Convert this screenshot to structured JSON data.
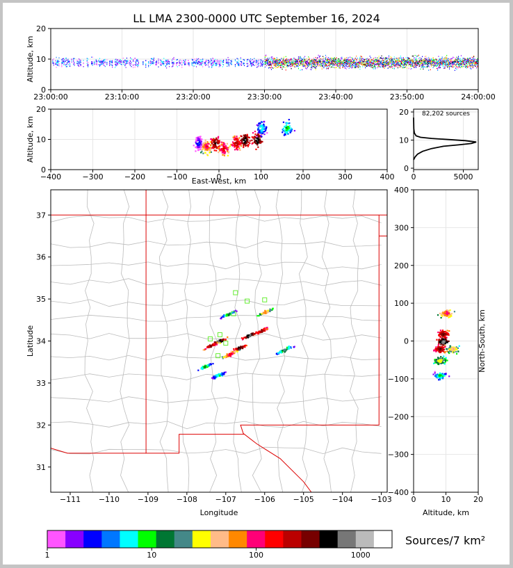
{
  "title": "LL LMA 2300-0000 UTC September 16, 2024",
  "colorbar_label": "Sources/7 km²",
  "chart_data": [
    {
      "id": "time_height",
      "type": "scatter",
      "xlabel": "",
      "ylabel": "Altitude, km",
      "x_ticks": [
        "23:00:00",
        "23:10:00",
        "23:20:00",
        "23:30:00",
        "23:40:00",
        "23:50:00",
        "24:00:00"
      ],
      "ylim": [
        0,
        20
      ],
      "y_ticks": [
        0,
        10,
        20
      ],
      "grid": true,
      "description_values": {
        "typical_altitude_km": [
          5,
          13
        ],
        "max_altitude_km": 20
      }
    },
    {
      "id": "ew_altitude",
      "type": "heatmap",
      "xlabel": "East-West, km",
      "ylabel": "Altitude, km",
      "xlim": [
        -400,
        400
      ],
      "x_ticks": [
        -400,
        -300,
        -200,
        -100,
        0,
        100,
        200,
        300,
        400
      ],
      "ylim": [
        0,
        20
      ],
      "y_ticks": [
        0,
        10,
        20
      ],
      "grid": true,
      "cells": [
        {
          "x": -50,
          "y": 9,
          "level": 3
        },
        {
          "x": -30,
          "y": 8,
          "level": 12
        },
        {
          "x": -10,
          "y": 9,
          "level": 15
        },
        {
          "x": 10,
          "y": 7,
          "level": 13
        },
        {
          "x": 40,
          "y": 9,
          "level": 14
        },
        {
          "x": 60,
          "y": 10,
          "level": 16
        },
        {
          "x": 90,
          "y": 10,
          "level": 16
        },
        {
          "x": 100,
          "y": 14,
          "level": 5
        },
        {
          "x": 160,
          "y": 14,
          "level": 6
        }
      ]
    },
    {
      "id": "altitude_histogram",
      "type": "line",
      "annotation": "82,202 sources",
      "xlim": [
        0,
        6500
      ],
      "x_ticks": [
        0,
        5000
      ],
      "ylim": [
        0,
        20
      ],
      "y_ticks": [
        0,
        10,
        20
      ],
      "x": [
        0,
        150,
        400,
        900,
        1800,
        3000,
        4500,
        5800,
        6300,
        5200,
        3500,
        1800,
        700,
        250,
        80,
        20,
        0
      ],
      "y": [
        3,
        4,
        5,
        6,
        7,
        7.8,
        8.3,
        8.8,
        9.3,
        9.8,
        10.2,
        10.6,
        11.0,
        11.5,
        12.5,
        14,
        18
      ]
    },
    {
      "id": "plan_view",
      "type": "heatmap",
      "xlabel": "Longitude",
      "ylabel": "Latitude",
      "xlim": [
        -111.5,
        -102.85
      ],
      "x_ticks": [
        -111,
        -110,
        -109,
        -108,
        -107,
        -106,
        -105,
        -104,
        -103
      ],
      "ylim": [
        30.4,
        37.6
      ],
      "y_ticks": [
        31,
        32,
        33,
        34,
        35,
        36,
        37
      ],
      "grid": false,
      "cells": [
        {
          "lon": -106.0,
          "lat": 34.7,
          "level": 10
        },
        {
          "lon": -106.1,
          "lat": 34.25,
          "level": 14
        },
        {
          "lon": -106.4,
          "lat": 34.15,
          "level": 16
        },
        {
          "lon": -106.65,
          "lat": 33.85,
          "level": 15
        },
        {
          "lon": -106.9,
          "lat": 33.7,
          "level": 12
        },
        {
          "lon": -107.2,
          "lat": 34.0,
          "level": 16
        },
        {
          "lon": -107.4,
          "lat": 33.9,
          "level": 14
        },
        {
          "lon": -107.55,
          "lat": 33.4,
          "level": 6
        },
        {
          "lon": -107.2,
          "lat": 33.2,
          "level": 5
        },
        {
          "lon": -105.5,
          "lat": 33.8,
          "level": 7
        },
        {
          "lon": -106.95,
          "lat": 34.65,
          "level": 6
        }
      ],
      "stations": [
        {
          "lon": -106.75,
          "lat": 35.15
        },
        {
          "lon": -106.45,
          "lat": 34.95
        },
        {
          "lon": -106.0,
          "lat": 34.98
        },
        {
          "lon": -107.15,
          "lat": 34.15
        },
        {
          "lon": -107.4,
          "lat": 34.05
        },
        {
          "lon": -107.0,
          "lat": 33.95
        },
        {
          "lon": -107.2,
          "lat": 33.65
        },
        {
          "lon": -106.8,
          "lat": 34.65
        }
      ]
    },
    {
      "id": "ns_altitude",
      "type": "heatmap",
      "xlabel": "Altitude, km",
      "ylabel": "North-South, km",
      "xlim": [
        0,
        20
      ],
      "x_ticks": [
        0,
        10,
        20
      ],
      "ylim": [
        -400,
        400
      ],
      "y_ticks": [
        -400,
        -300,
        -200,
        -100,
        0,
        100,
        200,
        300,
        400
      ],
      "grid": true,
      "cells": [
        {
          "x": 10,
          "y": 75,
          "level": 12
        },
        {
          "x": 9,
          "y": 20,
          "level": 15
        },
        {
          "x": 9,
          "y": 0,
          "level": 17
        },
        {
          "x": 8,
          "y": -20,
          "level": 15
        },
        {
          "x": 8,
          "y": -50,
          "level": 9
        },
        {
          "x": 12,
          "y": -20,
          "level": 10
        },
        {
          "x": 8,
          "y": -90,
          "level": 6
        }
      ]
    },
    {
      "id": "colorbar",
      "type": "table",
      "scale": "log",
      "x_ticks": [
        "1",
        "10",
        "100",
        "1000"
      ],
      "range": [
        1,
        2000
      ],
      "colors": [
        "#ff55ff",
        "#8800ff",
        "#0000ff",
        "#0077ff",
        "#00ffff",
        "#00ff00",
        "#007733",
        "#448888",
        "#ffff00",
        "#ffbb88",
        "#ff8800",
        "#ff0077",
        "#ff0000",
        "#bb0000",
        "#770000",
        "#000000",
        "#777777",
        "#bbbbbb",
        "#ffffff"
      ]
    }
  ]
}
